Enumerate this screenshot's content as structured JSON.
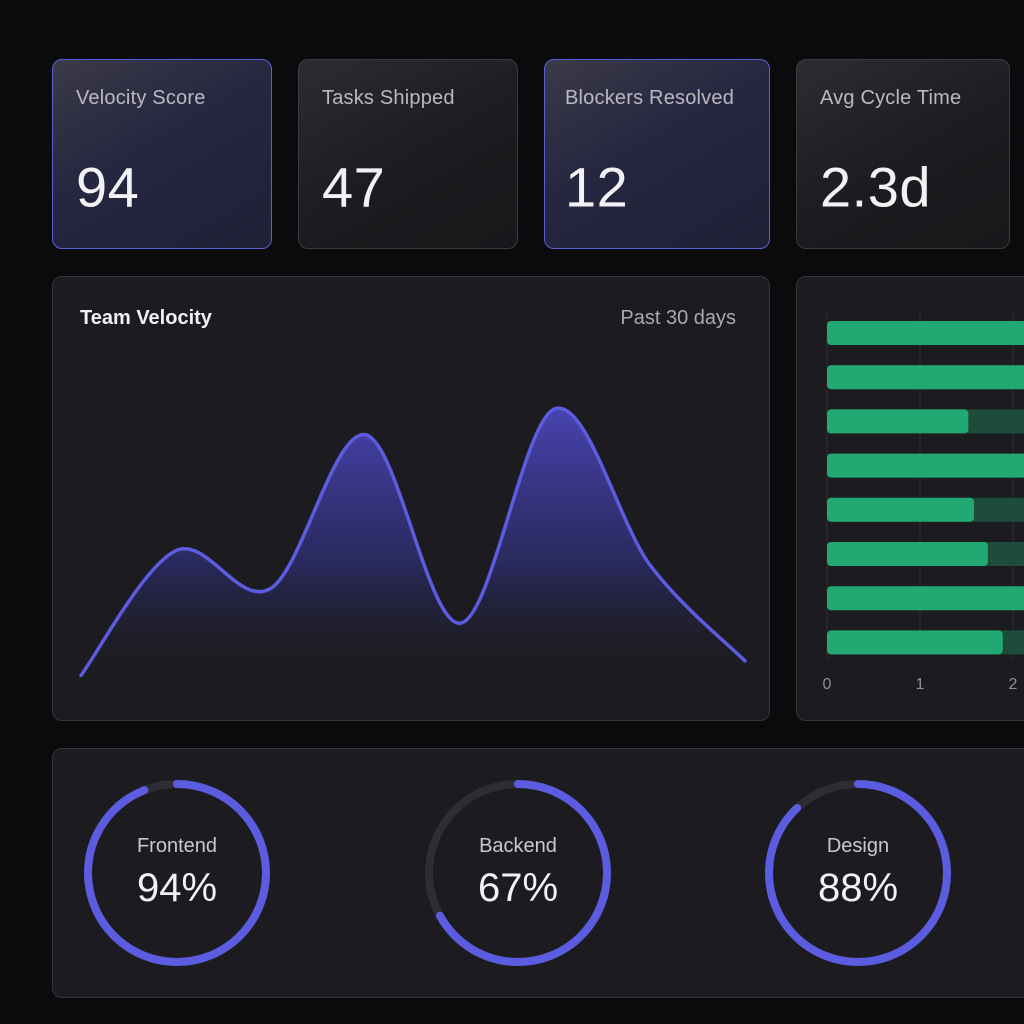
{
  "kpis": [
    {
      "label": "Velocity Score",
      "value": "94"
    },
    {
      "label": "Tasks Shipped",
      "value": "47"
    },
    {
      "label": "Blockers Resolved",
      "value": "12"
    },
    {
      "label": "Avg Cycle Time",
      "value": "2.3d"
    }
  ],
  "velocity_panel": {
    "title": "Team Velocity",
    "range": "Past 30 days"
  },
  "chart_data": [
    {
      "type": "area",
      "title": "Team Velocity",
      "subtitle": "Past 30 days",
      "xlabel": "",
      "ylabel": "",
      "grid": false,
      "x": [
        0,
        1,
        2,
        3,
        4,
        5,
        6,
        7
      ],
      "values": [
        4,
        47,
        34,
        87,
        22,
        96,
        42,
        9
      ],
      "color": "#5b5ce0"
    },
    {
      "type": "bar",
      "orientation": "horizontal",
      "x_ticks": [
        "0",
        "1",
        "2"
      ],
      "values": [
        2.3,
        2.3,
        1.52,
        2.3,
        1.58,
        1.73,
        2.3,
        1.89
      ],
      "track_max": 2.3,
      "color": "#22a872",
      "track_color": "#1e4c3a",
      "grid": true
    },
    {
      "type": "pie",
      "variant": "donut",
      "series": [
        {
          "name": "Frontend",
          "percent": "94%",
          "value": 94
        },
        {
          "name": "Backend",
          "percent": "67%",
          "value": 67
        },
        {
          "name": "Design",
          "percent": "88%",
          "value": 88
        }
      ],
      "color": "#5b5ce0",
      "track_color": "#2d2d33"
    }
  ]
}
